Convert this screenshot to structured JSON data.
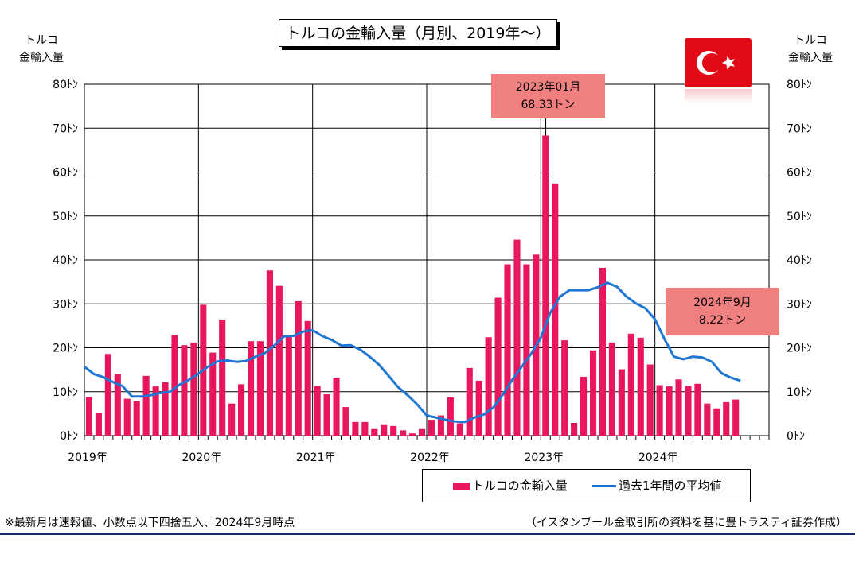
{
  "chart_data": {
    "type": "bar+line",
    "title": "トルコの金輸入量（月別、2019年～）",
    "ylabel_left": [
      "トルコ",
      "金輸入量"
    ],
    "ylabel_right": [
      "トルコ",
      "金輸入量"
    ],
    "ylim": [
      0,
      80
    ],
    "y_ticks": [
      "0ﾄﾝ",
      "10ﾄﾝ",
      "20ﾄﾝ",
      "30ﾄﾝ",
      "40ﾄﾝ",
      "50ﾄﾝ",
      "60ﾄﾝ",
      "70ﾄﾝ",
      "80ﾄﾝ"
    ],
    "x_ticks": [
      "2019年",
      "2020年",
      "2021年",
      "2022年",
      "2023年",
      "2024年"
    ],
    "months_start": "2019-01",
    "series": [
      {
        "name": "トルコの金輸入量",
        "type": "bar",
        "color": "#e8175d",
        "values": [
          8.8,
          5.1,
          18.6,
          14.0,
          8.4,
          7.9,
          13.6,
          11.2,
          12.2,
          22.9,
          20.6,
          21.2,
          29.8,
          18.9,
          26.4,
          7.3,
          11.7,
          21.5,
          21.5,
          37.6,
          34.1,
          22.5,
          30.6,
          26.1,
          11.3,
          9.4,
          13.2,
          6.5,
          3.1,
          3.1,
          1.5,
          2.4,
          2.2,
          1.2,
          0.5,
          1.5,
          3.6,
          4.6,
          8.7,
          2.8,
          15.4,
          12.5,
          22.4,
          31.4,
          39.0,
          44.6,
          39.0,
          41.2,
          68.33,
          57.4,
          21.7,
          2.9,
          13.4,
          19.4,
          38.2,
          21.2,
          15.1,
          23.2,
          22.3,
          16.2,
          11.5,
          11.2,
          12.8,
          11.3,
          11.8,
          7.3,
          6.2,
          7.6,
          8.22
        ]
      },
      {
        "name": "過去1年間の平均値",
        "type": "line",
        "color": "#1f77d4",
        "values": [
          15.7,
          14.0,
          13.3,
          12.2,
          11.3,
          8.9,
          8.9,
          9.2,
          9.7,
          10.0,
          11.6,
          12.7,
          14.1,
          15.7,
          16.9,
          17.1,
          16.8,
          17.0,
          18.0,
          18.8,
          20.6,
          22.6,
          22.7,
          23.7,
          24.0,
          22.7,
          21.8,
          20.5,
          20.6,
          19.6,
          18.0,
          16.1,
          13.6,
          11.0,
          9.2,
          7.1,
          4.6,
          4.1,
          3.6,
          3.2,
          3.1,
          4.1,
          4.8,
          6.4,
          9.3,
          12.7,
          15.7,
          18.7,
          22.3,
          28.0,
          31.6,
          33.1,
          33.1,
          33.1,
          33.8,
          34.8,
          33.9,
          31.7,
          30.1,
          29.0,
          26.5,
          22.0,
          18.0,
          17.4,
          18.0,
          17.8,
          16.8,
          14.2,
          13.2,
          12.5
        ]
      }
    ],
    "annotations": [
      {
        "month_index": 48,
        "lines": [
          "2023年01月",
          "68.33トン"
        ]
      },
      {
        "month_index": 68,
        "lines": [
          "2024年9月",
          "8.22トン"
        ]
      }
    ],
    "legend": {
      "position": "bottom-right"
    },
    "grid": true
  },
  "flag": {
    "icon": "turkey-flag-icon",
    "color": "#e30a17"
  },
  "footnote_left": "※最新月は速報値、小数点以下四捨五入、2024年9月時点",
  "footnote_right": "（イスタンブール金取引所の資料を基に豊トラスティ証券作成）"
}
